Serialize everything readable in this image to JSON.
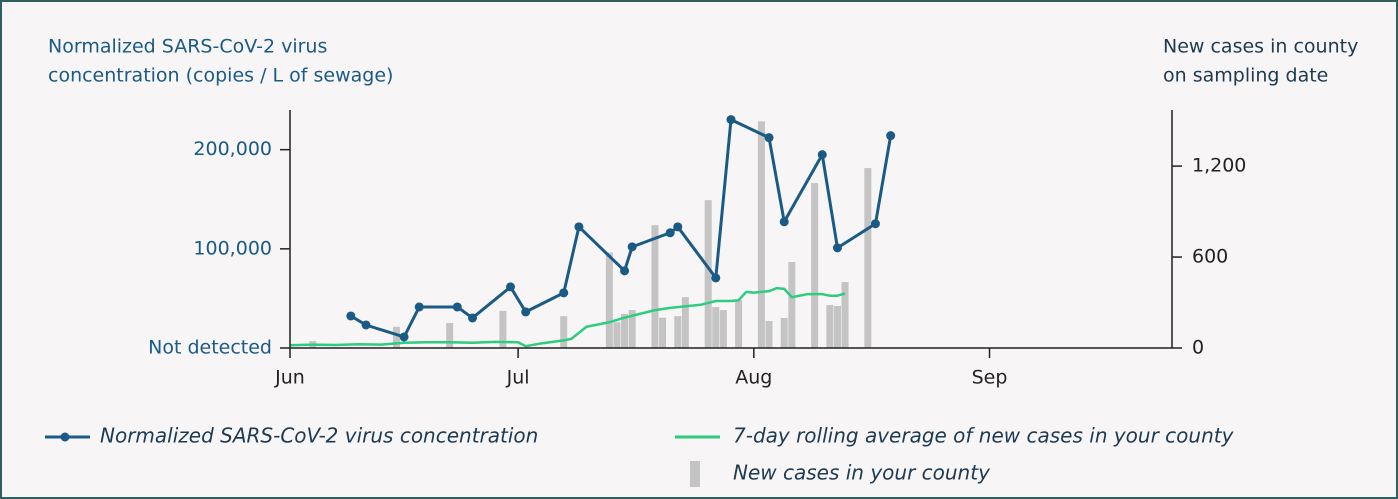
{
  "chart_data": {
    "type": "line",
    "ylabel": [
      "Normalized SARS-CoV-2 virus",
      "concentration (copies / L of sewage)"
    ],
    "y2label": [
      "New cases in county",
      "on sampling date"
    ],
    "xlim": [
      0,
      116
    ],
    "xticks": [
      {
        "value": 0,
        "label": "Jun"
      },
      {
        "value": 30,
        "label": "Jul"
      },
      {
        "value": 61,
        "label": "Aug"
      },
      {
        "value": 92,
        "label": "Sep"
      }
    ],
    "ylim": [
      0,
      240000
    ],
    "yticks": [
      {
        "value": 0,
        "label": "Not detected"
      },
      {
        "value": 100000,
        "label": "100,000"
      },
      {
        "value": 200000,
        "label": "200,000"
      }
    ],
    "y2lim": [
      0,
      1570
    ],
    "y2ticks": [
      0,
      {
        "value": 600,
        "label": "600"
      },
      {
        "value": 1200,
        "label": "1,200"
      }
    ],
    "series": [
      {
        "name": "New cases in your county",
        "type": "bar",
        "color": "#c4c4c4",
        "axis": "y2",
        "x": [
          3,
          14,
          21,
          28,
          36,
          42,
          43,
          44,
          45,
          48,
          49,
          51,
          52,
          55,
          56,
          57,
          59,
          62,
          63,
          65,
          66,
          69,
          71,
          72,
          73,
          76
        ],
        "values": [
          46,
          140,
          165,
          245,
          210,
          630,
          170,
          225,
          250,
          810,
          200,
          210,
          335,
          975,
          270,
          250,
          315,
          1495,
          178,
          198,
          567,
          1088,
          283,
          277,
          435,
          1187
        ]
      },
      {
        "name": "7-day rolling average of new cases in your county",
        "type": "line",
        "color": "#2ecc80",
        "axis": "y2",
        "x": [
          0,
          3,
          6,
          9,
          12,
          15,
          18,
          21,
          24,
          27,
          30,
          31,
          33,
          36,
          37,
          39,
          42,
          44,
          46,
          48,
          50,
          52,
          54,
          56,
          58,
          59,
          60,
          61,
          63,
          64,
          65,
          66,
          68,
          70,
          71,
          72,
          73
        ],
        "values": [
          18,
          22,
          20,
          25,
          22,
          35,
          38,
          38,
          35,
          40,
          38,
          12,
          30,
          50,
          60,
          140,
          170,
          200,
          225,
          250,
          265,
          275,
          285,
          310,
          310,
          315,
          370,
          365,
          375,
          395,
          390,
          335,
          355,
          355,
          345,
          345,
          360
        ]
      },
      {
        "name": "Normalized SARS-CoV-2 virus concentration",
        "type": "line",
        "markers": true,
        "color": "#1a5a85",
        "x": [
          8,
          10,
          15,
          17,
          22,
          24,
          29,
          31,
          36,
          38,
          44,
          45,
          50,
          51,
          56,
          58,
          63,
          65,
          70,
          72,
          77,
          79
        ],
        "values": [
          32300,
          23200,
          11100,
          41400,
          41400,
          30300,
          61600,
          36400,
          55600,
          122200,
          77800,
          102000,
          116200,
          122200,
          70700,
          230300,
          212100,
          127300,
          195000,
          101000,
          125300,
          214100
        ]
      }
    ]
  }
}
